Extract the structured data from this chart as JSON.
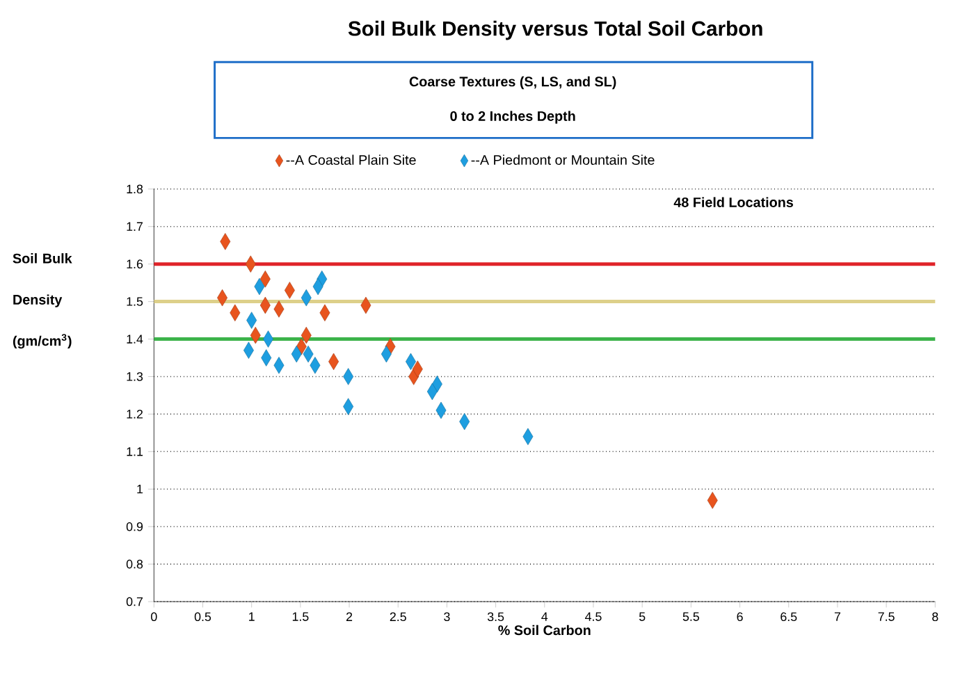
{
  "chart_data": {
    "type": "scatter",
    "title": "Soil Bulk Density versus Total Soil Carbon",
    "subtitle": "Coarse Textures (S, LS, and SL)",
    "xlabel": "% Soil Carbon",
    "ylabel": "Soil Bulk Density (gm/cm$^{3}$)",
    "annotations": [
      "0  to 2 Inches Depth",
      "48 Field Locations"
    ],
    "series": [
      {
        "name": "--A Coastal Plain Site",
        "color": "#e8541e",
        "x": [
          0.73,
          0.99,
          0.7,
          0.83,
          1.14,
          1.14,
          1.28,
          1.39,
          1.04,
          1.56,
          1.51,
          1.75,
          1.84,
          2.17,
          2.42,
          2.66,
          2.7,
          5.72
        ],
        "values": [
          1.66,
          1.6,
          1.51,
          1.47,
          1.56,
          1.49,
          1.48,
          1.53,
          1.41,
          1.41,
          1.38,
          1.47,
          1.34,
          1.49,
          1.38,
          1.3,
          1.32,
          0.97
        ]
      },
      {
        "name": "--A Piedmont or Mountain Site",
        "color": "#1e9ee0",
        "x": [
          1.08,
          1.0,
          0.97,
          1.17,
          1.15,
          1.28,
          1.56,
          1.72,
          1.68,
          1.46,
          1.58,
          1.65,
          1.99,
          1.99,
          2.38,
          2.63,
          2.9,
          2.85,
          2.94,
          3.18,
          3.83
        ],
        "values": [
          1.54,
          1.45,
          1.37,
          1.4,
          1.35,
          1.33,
          1.51,
          1.56,
          1.54,
          1.36,
          1.36,
          1.33,
          1.3,
          1.22,
          1.36,
          1.34,
          1.28,
          1.26,
          1.21,
          1.18,
          1.14
        ]
      }
    ],
    "marker": "diamond",
    "grid": "y",
    "legend": "top",
    "xlim": [
      0,
      8
    ],
    "xticks": [
      0,
      0.5,
      1,
      1.5,
      2,
      2.5,
      3,
      3.5,
      4,
      4.5,
      5,
      5.5,
      6,
      6.5,
      7,
      7.5,
      8
    ],
    "ylim": [
      0.7,
      1.8
    ],
    "yticks": [
      0.7,
      0.8,
      0.9,
      1,
      1.1,
      1.2,
      1.3,
      1.4,
      1.5,
      1.6,
      1.7,
      1.8
    ],
    "ref_lines": [
      {
        "axis": "y",
        "value": 1.6,
        "color": "#e0242a"
      },
      {
        "axis": "y",
        "value": 1.5,
        "color": "#ddd08a"
      },
      {
        "axis": "y",
        "value": 1.4,
        "color": "#3cb34a"
      }
    ]
  }
}
